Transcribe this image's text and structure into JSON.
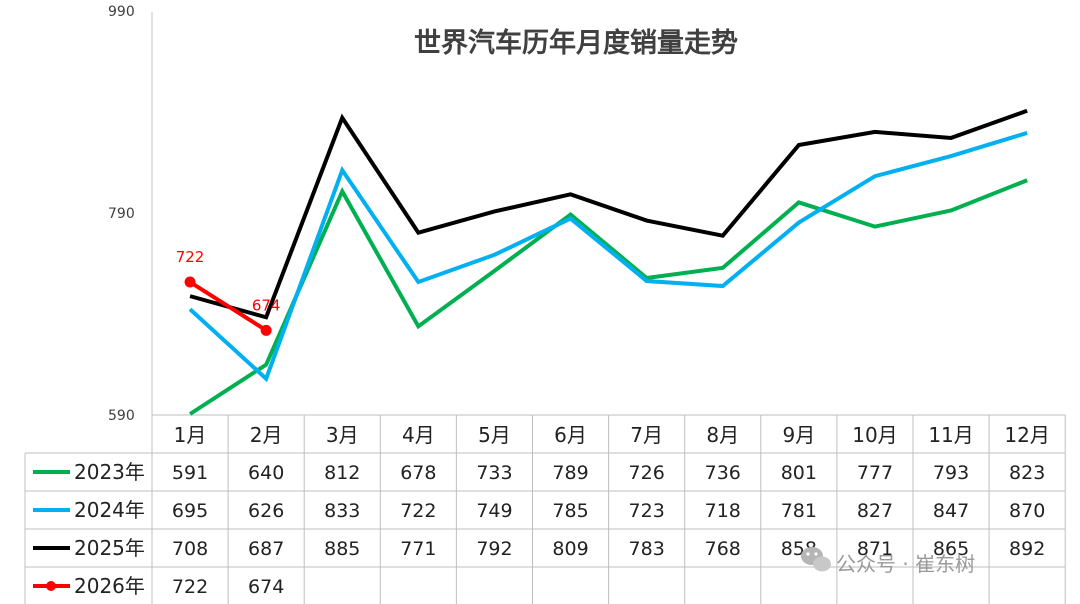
{
  "watermark": {
    "text": "公众号 · 崔东树",
    "icon": "wechat-icon"
  },
  "chart_data": {
    "type": "line",
    "title": "世界汽车历年月度销量走势",
    "y_ticks": [
      "990",
      "790",
      "590"
    ],
    "ylim": [
      590,
      990
    ],
    "grid": false,
    "legend_placement": "data table, left column",
    "categories": [
      "1月",
      "2月",
      "3月",
      "4月",
      "5月",
      "6月",
      "7月",
      "8月",
      "9月",
      "10月",
      "11月",
      "12月"
    ],
    "series": [
      {
        "name": "2023年",
        "color": "#00b050",
        "marker": false,
        "values": [
          591,
          640,
          812,
          678,
          733,
          789,
          726,
          736,
          801,
          777,
          793,
          823
        ]
      },
      {
        "name": "2024年",
        "color": "#00b0f0",
        "marker": false,
        "values": [
          695,
          626,
          833,
          722,
          749,
          785,
          723,
          718,
          781,
          827,
          847,
          870
        ]
      },
      {
        "name": "2025年",
        "color": "#000000",
        "marker": false,
        "values": [
          708,
          687,
          885,
          771,
          792,
          809,
          783,
          768,
          858,
          871,
          865,
          892
        ]
      },
      {
        "name": "2026年",
        "color": "#ff0000",
        "marker": true,
        "values": [
          722,
          674,
          null,
          null,
          null,
          null,
          null,
          null,
          null,
          null,
          null,
          null
        ]
      }
    ],
    "data_labels": [
      {
        "series": "2026年",
        "category": "1月",
        "text": "722"
      },
      {
        "series": "2026年",
        "category": "2月",
        "text": "674"
      }
    ]
  }
}
